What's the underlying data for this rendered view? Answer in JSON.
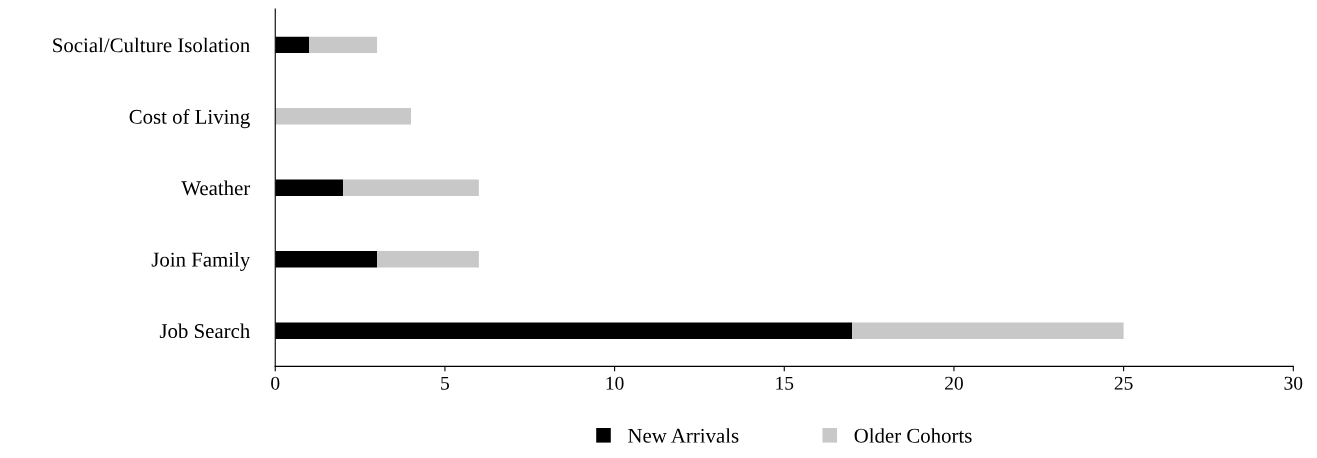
{
  "chart_data": {
    "type": "bar",
    "orientation": "horizontal",
    "stacked": true,
    "categories": [
      "Social/Culture Isolation",
      "Cost of Living",
      "Weather",
      "Join Family",
      "Job Search"
    ],
    "series": [
      {
        "name": "New Arrivals",
        "color": "#000000",
        "values": [
          1,
          0,
          2,
          3,
          17
        ]
      },
      {
        "name": "Older Cohorts",
        "color": "#c8c8c8",
        "values": [
          2,
          4,
          4,
          3,
          8
        ]
      }
    ],
    "xlim": [
      0,
      30
    ],
    "xticks": [
      0,
      5,
      10,
      15,
      20,
      25,
      30
    ],
    "grid": false,
    "legend": "bottom"
  }
}
